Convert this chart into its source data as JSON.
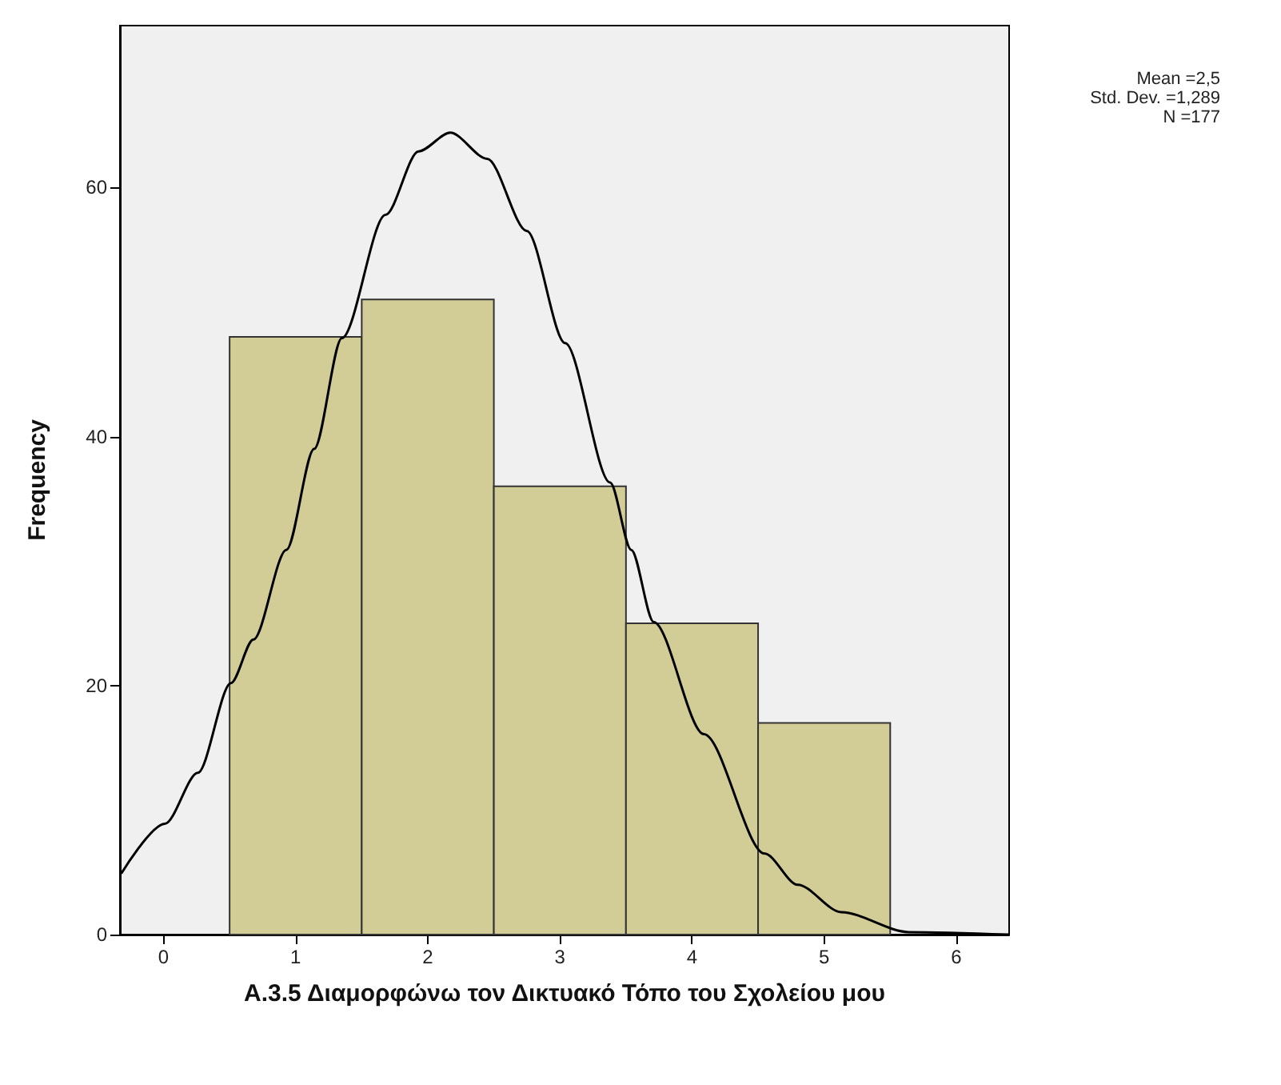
{
  "chart_data": {
    "type": "histogram",
    "xlabel": "Α.3.5 Διαμορφώνω τον Δικτυακό Τόπο του Σχολείου μου",
    "ylabel": "Frequency",
    "bins": [
      0.5,
      1.5,
      2.5,
      3.5,
      4.5,
      5.5
    ],
    "values": [
      48,
      51,
      36,
      25,
      17
    ],
    "color": "#d2cd96",
    "series": [
      {
        "type": "line",
        "color": "#000000",
        "x": [
          -0.32,
          0.01,
          0.26,
          0.51,
          0.68,
          0.93,
          1.14,
          1.35,
          1.68,
          1.93,
          2.17,
          2.45,
          2.75,
          3.04,
          3.38,
          3.54,
          3.71,
          4.09,
          4.55,
          4.8,
          5.13,
          5.64,
          6.4
        ],
        "values": [
          4.9,
          8.9,
          13.0,
          20.2,
          23.7,
          30.9,
          39.0,
          47.9,
          57.8,
          62.9,
          64.4,
          62.3,
          56.5,
          47.5,
          36.3,
          30.9,
          25.1,
          16.1,
          6.5,
          4.0,
          1.8,
          0.2,
          0
        ]
      }
    ],
    "xlim": [
      -0.33,
      6.4
    ],
    "xticks": [
      0,
      1,
      2,
      3,
      4,
      5,
      6
    ],
    "ylim": [
      0,
      73
    ],
    "yticks": [
      0,
      20,
      40,
      60
    ],
    "grid": false,
    "marker": "none",
    "annotations": [
      "Mean =2,5",
      "Std. Dev. =1,289",
      "N =177"
    ]
  }
}
